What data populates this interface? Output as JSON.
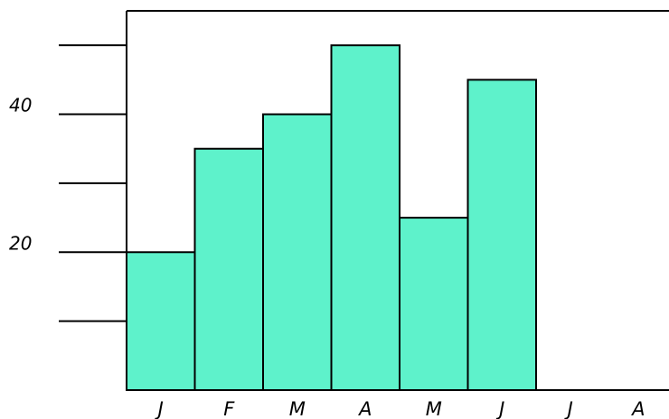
{
  "chart_data": {
    "type": "bar",
    "categories": [
      "J",
      "F",
      "M",
      "A",
      "M",
      "J",
      "J",
      "A"
    ],
    "values": [
      20,
      35,
      40,
      50,
      25,
      45,
      null,
      null
    ],
    "ylim": [
      0,
      55
    ],
    "y_ticks": [
      10,
      20,
      30,
      40,
      50
    ],
    "y_tick_labels": [
      {
        "value": 20,
        "label": "20"
      },
      {
        "value": 40,
        "label": "40"
      }
    ],
    "bar_color": "#5ef2cb",
    "bar_edge_color": "#000000",
    "grid": false,
    "title": "",
    "xlabel": "",
    "ylabel": ""
  }
}
